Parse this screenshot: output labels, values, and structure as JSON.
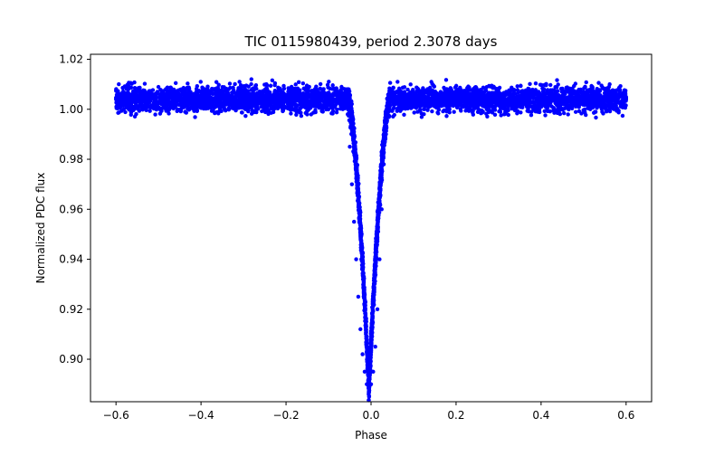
{
  "chart_data": {
    "type": "scatter",
    "title": "TIC 0115980439, period 2.3078 days",
    "xlabel": "Phase",
    "ylabel": "Normalized PDC flux",
    "xlim": [
      -0.66,
      0.66
    ],
    "ylim": [
      0.883,
      1.022
    ],
    "grid": false,
    "legend": "none",
    "marker_color": "#0000ff",
    "x_ticks": [
      -0.6,
      -0.4,
      -0.2,
      0.0,
      0.2,
      0.4,
      0.6
    ],
    "x_tick_labels": [
      "−0.6",
      "−0.4",
      "−0.2",
      "0.0",
      "0.2",
      "0.4",
      "0.6"
    ],
    "y_ticks": [
      0.9,
      0.92,
      0.94,
      0.96,
      0.98,
      1.0,
      1.02
    ],
    "y_tick_labels": [
      "0.90",
      "0.92",
      "0.94",
      "0.96",
      "0.98",
      "1.00",
      "1.02"
    ],
    "series": [
      {
        "baseline_flux": 1.004,
        "phase_range": [
          -0.6,
          0.6
        ],
        "transit_center_phase": -0.005,
        "transit_min_flux": 0.888,
        "transit_half_width_phase": 0.05,
        "points": [
          [
            -0.6,
            1.004
          ],
          [
            -0.55,
            1.005
          ],
          [
            -0.5,
            1.003
          ],
          [
            -0.45,
            1.004
          ],
          [
            -0.4,
            1.005
          ],
          [
            -0.35,
            1.004
          ],
          [
            -0.3,
            1.003
          ],
          [
            -0.25,
            1.005
          ],
          [
            -0.2,
            1.004
          ],
          [
            -0.15,
            1.004
          ],
          [
            -0.1,
            1.005
          ],
          [
            -0.07,
            1.003
          ],
          [
            -0.055,
            0.998
          ],
          [
            -0.05,
            0.985
          ],
          [
            -0.045,
            0.97
          ],
          [
            -0.04,
            0.955
          ],
          [
            -0.035,
            0.94
          ],
          [
            -0.03,
            0.925
          ],
          [
            -0.025,
            0.912
          ],
          [
            -0.02,
            0.902
          ],
          [
            -0.015,
            0.895
          ],
          [
            -0.01,
            0.89
          ],
          [
            -0.005,
            0.888
          ],
          [
            0.0,
            0.89
          ],
          [
            0.005,
            0.895
          ],
          [
            0.01,
            0.905
          ],
          [
            0.015,
            0.92
          ],
          [
            0.02,
            0.94
          ],
          [
            0.025,
            0.96
          ],
          [
            0.03,
            0.978
          ],
          [
            0.035,
            0.992
          ],
          [
            0.04,
            1.001
          ],
          [
            0.05,
            1.004
          ],
          [
            0.1,
            1.005
          ],
          [
            0.15,
            1.004
          ],
          [
            0.2,
            1.003
          ],
          [
            0.25,
            1.005
          ],
          [
            0.3,
            1.004
          ],
          [
            0.35,
            1.004
          ],
          [
            0.4,
            1.005
          ],
          [
            0.45,
            1.003
          ],
          [
            0.5,
            1.004
          ],
          [
            0.55,
            1.005
          ],
          [
            0.6,
            1.004
          ]
        ]
      }
    ]
  }
}
